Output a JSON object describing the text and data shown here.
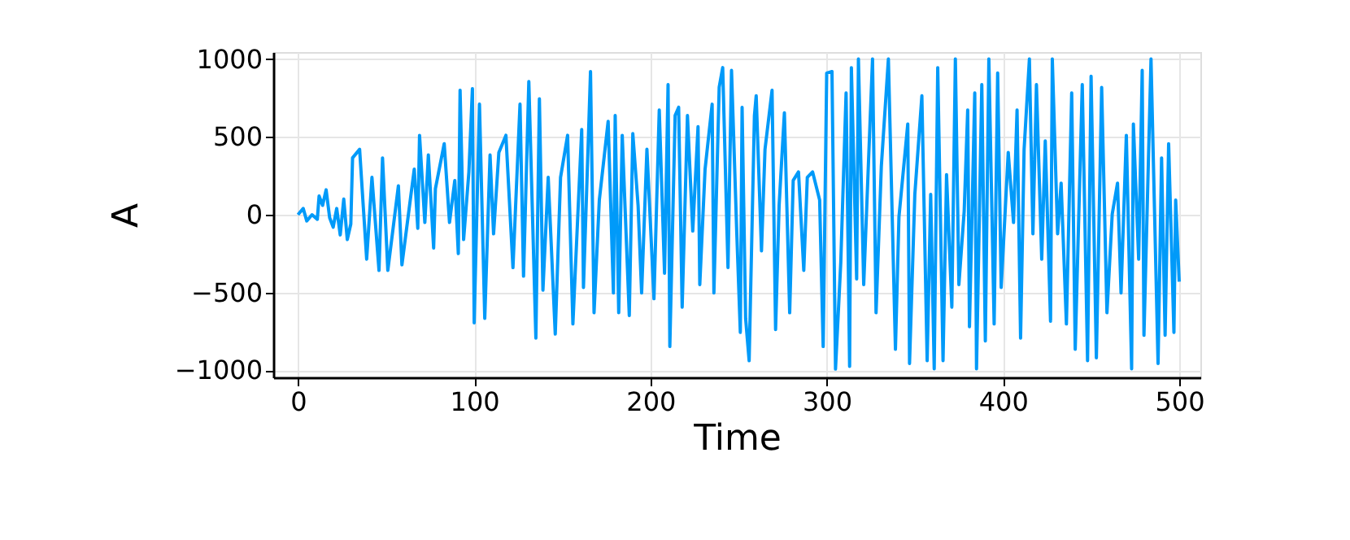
{
  "chart_data": {
    "type": "line",
    "xlabel": "Time",
    "ylabel": "A",
    "series": [
      {
        "color": "#009af9",
        "x": [
          0,
          3,
          5,
          8,
          11,
          12,
          14,
          16,
          18,
          20,
          22,
          24,
          26,
          28,
          30,
          31,
          35,
          39,
          42,
          46,
          48,
          51,
          57,
          59,
          66,
          68,
          69,
          72,
          74,
          77,
          78,
          83,
          86,
          89,
          91,
          92,
          94,
          97,
          99,
          100,
          103,
          106,
          109,
          111,
          114,
          118,
          122,
          126,
          128,
          131,
          135,
          137,
          139,
          142,
          146,
          149,
          153,
          156,
          161,
          162,
          165,
          166,
          168,
          171,
          176,
          179,
          180,
          182,
          184,
          188,
          190,
          193,
          195,
          198,
          202,
          205,
          208,
          210,
          211,
          214,
          216,
          218,
          221,
          224,
          227,
          228,
          231,
          235,
          236,
          239,
          241,
          244,
          246,
          249,
          251,
          252,
          254,
          256,
          259,
          260,
          263,
          265,
          269,
          271,
          273,
          276,
          279,
          281,
          284,
          287,
          289,
          292,
          296,
          298,
          300,
          303,
          305,
          308,
          311,
          313,
          314,
          317,
          318,
          321,
          326,
          328,
          331,
          335,
          339,
          341,
          346,
          347,
          350,
          354,
          357,
          359,
          361,
          363,
          366,
          368,
          371,
          373,
          375,
          378,
          380,
          381,
          384,
          385,
          388,
          390,
          392,
          395,
          397,
          399,
          403,
          406,
          408,
          410,
          412,
          415,
          417,
          419,
          422,
          424,
          427,
          428,
          431,
          433,
          436,
          439,
          441,
          445,
          448,
          450,
          453,
          456,
          459,
          462,
          465,
          467,
          470,
          473,
          474,
          477,
          479,
          480,
          484,
          488,
          490,
          492,
          494,
          497,
          498,
          500
        ],
        "values": [
          0,
          40,
          -40,
          0,
          -30,
          120,
          60,
          160,
          -20,
          -80,
          40,
          -130,
          100,
          -160,
          -60,
          365,
          420,
          -286,
          240,
          -358,
          365,
          -358,
          185,
          -322,
          293,
          -87,
          510,
          -50,
          384,
          -214,
          166,
          456,
          -50,
          220,
          -250,
          800,
          -160,
          275,
          810,
          -695,
          710,
          -666,
          384,
          -123,
          400,
          510,
          -340,
          710,
          -395,
          855,
          -793,
          745,
          -485,
          240,
          -767,
          240,
          510,
          -702,
          547,
          -467,
          565,
          920,
          -630,
          94,
          600,
          -503,
          637,
          -630,
          510,
          -648,
          521,
          58,
          -503,
          420,
          -540,
          673,
          -376,
          836,
          -847,
          637,
          690,
          -594,
          637,
          -105,
          565,
          -449,
          293,
          710,
          -503,
          818,
          945,
          -340,
          927,
          -123,
          -756,
          690,
          -666,
          -938,
          637,
          764,
          -232,
          420,
          800,
          -738,
          58,
          655,
          -630,
          220,
          275,
          -358,
          240,
          275,
          94,
          -847,
          910,
          920,
          -992,
          -304,
          782,
          -974,
          945,
          -413,
          1000,
          -449,
          1000,
          -630,
          311,
          1000,
          -865,
          -14,
          583,
          -956,
          130,
          764,
          -938,
          130,
          -990,
          945,
          -938,
          257,
          -594,
          1000,
          -449,
          22,
          673,
          -720,
          782,
          -990,
          836,
          -811,
          1000,
          -702,
          910,
          -467,
          400,
          -50,
          673,
          -793,
          420,
          1000,
          -123,
          836,
          -286,
          474,
          -684,
          1000,
          -123,
          203,
          -702,
          782,
          -865,
          836,
          -938,
          890,
          -920,
          818,
          -630,
          4,
          203,
          -503,
          510,
          -990,
          583,
          -286,
          927,
          -775,
          1000,
          -956,
          365,
          -775,
          456,
          -756,
          94,
          -430
        ]
      }
    ],
    "xlim": [
      -14,
      512
    ],
    "xticks": [
      0,
      100,
      200,
      300,
      400,
      500
    ],
    "ylim": [
      -1045,
      1045
    ],
    "yticks": [
      -1000,
      -500,
      0,
      500,
      1000
    ],
    "grid": true,
    "line_style": "solid",
    "marker": "none"
  }
}
